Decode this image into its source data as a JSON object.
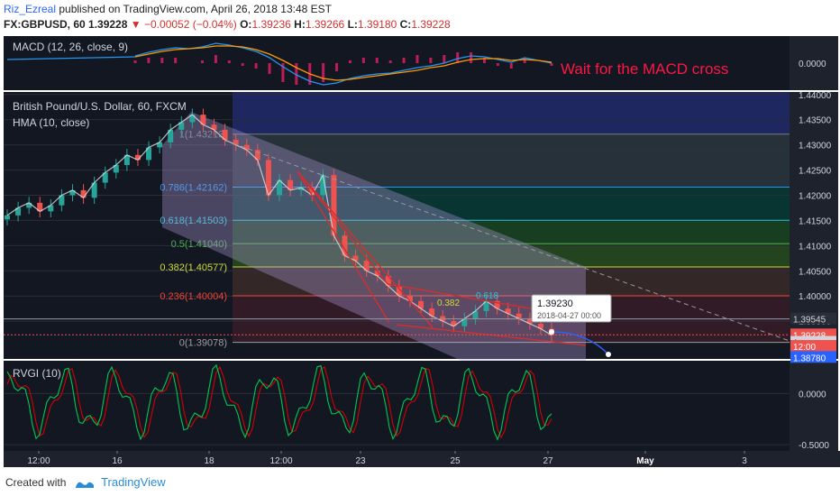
{
  "header": {
    "user": "Riz_Ezreal",
    "published": " published on TradingView.com, April 26, 2018 13:48 EST",
    "symbol": "FX:GBPUSD, 60",
    "last": "1.39228",
    "arrow": "▼",
    "change": "−0.00052 (−0.04%)",
    "o_label": "O:",
    "o": "1.39236",
    "h_label": "H:",
    "h": "1.39266",
    "l_label": "L:",
    "l": "1.39180",
    "c_label": "C:",
    "c": "1.39228"
  },
  "footer": {
    "created_with": "Created with",
    "brand": "TradingView"
  },
  "colors": {
    "background": "#131722",
    "macd_line": "#2196f3",
    "signal_line": "#ff9800",
    "histogram": "#e91e63",
    "rvgi_line": "#00c853",
    "rvgi_signal": "#d50000",
    "channel": "#b39ddb",
    "annotation": "#ff1744"
  },
  "chart_data": [
    {
      "type": "line",
      "panel": "MACD",
      "title": "MACD (12, 26, close, 9)",
      "annotation": "Wait for the MACD cross",
      "y_ticks": [
        "0.0000"
      ],
      "series": [
        {
          "values": [
            0.0008,
            0.0012,
            0.0015,
            0.0017,
            0.0016,
            0.0018,
            0.0022,
            0.002,
            0.0017,
            0.0013,
            0.0006,
            -0.0004,
            -0.0013,
            -0.002,
            -0.0024,
            -0.0022,
            -0.0017,
            -0.0014,
            -0.0012,
            -0.0011,
            -0.0008,
            -0.0005,
            -0.0003,
            0.0,
            0.0005,
            0.0008,
            0.0007,
            0.0004,
            0.0001,
            0.0006,
            0.0003,
            0.0
          ]
        },
        {
          "values": [
            0.0007,
            0.001,
            0.0013,
            0.0015,
            0.0016,
            0.0017,
            0.0019,
            0.0019,
            0.0018,
            0.0015,
            0.001,
            0.0003,
            -0.0005,
            -0.0012,
            -0.0017,
            -0.0019,
            -0.0018,
            -0.0016,
            -0.0014,
            -0.0012,
            -0.001,
            -0.0008,
            -0.0005,
            -0.0003,
            0.0001,
            0.0004,
            0.0005,
            0.0005,
            0.0003,
            0.0004,
            0.0003,
            0.0001
          ]
        }
      ]
    },
    {
      "type": "candlestick",
      "panel": "Price",
      "title": "British Pound/U.S. Dollar, 60, FXCM",
      "subtitle": "HMA (10, close)",
      "ylim": [
        1.3875,
        1.4405
      ],
      "y_ticks": [
        1.44,
        1.435,
        1.43,
        1.425,
        1.42,
        1.415,
        1.41,
        1.405,
        1.4,
        1.395
      ],
      "y_tick_labels": [
        "1.44000",
        "1.43500",
        "1.43000",
        "1.42500",
        "1.42000",
        "1.41500",
        "1.41000",
        "1.40500",
        "1.40000",
        "1.39500"
      ],
      "x_ticks": [
        "12:00",
        "16",
        "18",
        "12:00",
        "23",
        "25",
        "27",
        "May",
        "3"
      ],
      "close": [
        1.416,
        1.4175,
        1.4185,
        1.4168,
        1.418,
        1.42,
        1.421,
        1.4195,
        1.4225,
        1.4245,
        1.426,
        1.428,
        1.427,
        1.4295,
        1.4305,
        1.433,
        1.4345,
        1.436,
        1.434,
        1.433,
        1.431,
        1.43,
        1.429,
        1.427,
        1.42,
        1.423,
        1.421,
        1.4215,
        1.42,
        1.424,
        1.412,
        1.408,
        1.407,
        1.405,
        1.404,
        1.402,
        1.4,
        1.399,
        1.3975,
        1.396,
        1.395,
        1.394,
        1.3955,
        1.397,
        1.399,
        1.3975,
        1.3965,
        1.3955,
        1.3945,
        1.3935,
        1.3922
      ],
      "fib_levels": [
        {
          "label": "1(1.43213)",
          "value": 1.43213,
          "color": "#787b86"
        },
        {
          "label": "0.786(1.42162)",
          "value": 1.42162,
          "color": "#2196f3"
        },
        {
          "label": "0.618(1.41503)",
          "value": 1.41503,
          "color": "#26c6da"
        },
        {
          "label": "0.5(1.41040)",
          "value": 1.4104,
          "color": "#4caf50"
        },
        {
          "label": "0.382(1.40577)",
          "value": 1.40577,
          "color": "#cddc39"
        },
        {
          "label": "0.236(1.40004)",
          "value": 1.40004,
          "color": "#f44336"
        },
        {
          "label": "0(1.39078)",
          "value": 1.39078,
          "color": "#9e9e9e"
        }
      ],
      "price_labels": [
        {
          "text": "1.39545",
          "value": 1.39545,
          "color": "#2a2e39",
          "textcolor": "#d1d4dc"
        },
        {
          "text": "1.39228",
          "value": 1.39228,
          "color": "#ef5350",
          "textcolor": "#ffffff"
        },
        {
          "text": "1.",
          "value": 1.3908,
          "color": "#d1d4dc",
          "textcolor": "#131722"
        },
        {
          "text": "12:00",
          "value": 1.39,
          "color": "#ef5350",
          "textcolor": "#ffffff"
        },
        {
          "text": "1.38780",
          "value": 1.3878,
          "color": "#2962ff",
          "textcolor": "#ffffff"
        }
      ],
      "callout": {
        "price": "1.39230",
        "time": "2018-04-27 00:00"
      },
      "pattern_labels": [
        "0.382",
        "0.618"
      ]
    },
    {
      "type": "line",
      "panel": "RVGI",
      "title": "RVGI (10)",
      "y_ticks": [
        0.0,
        -0.5
      ],
      "y_tick_labels": [
        "0.0000",
        "-0.5000"
      ],
      "ylim": [
        -0.56,
        0.32
      ]
    }
  ]
}
